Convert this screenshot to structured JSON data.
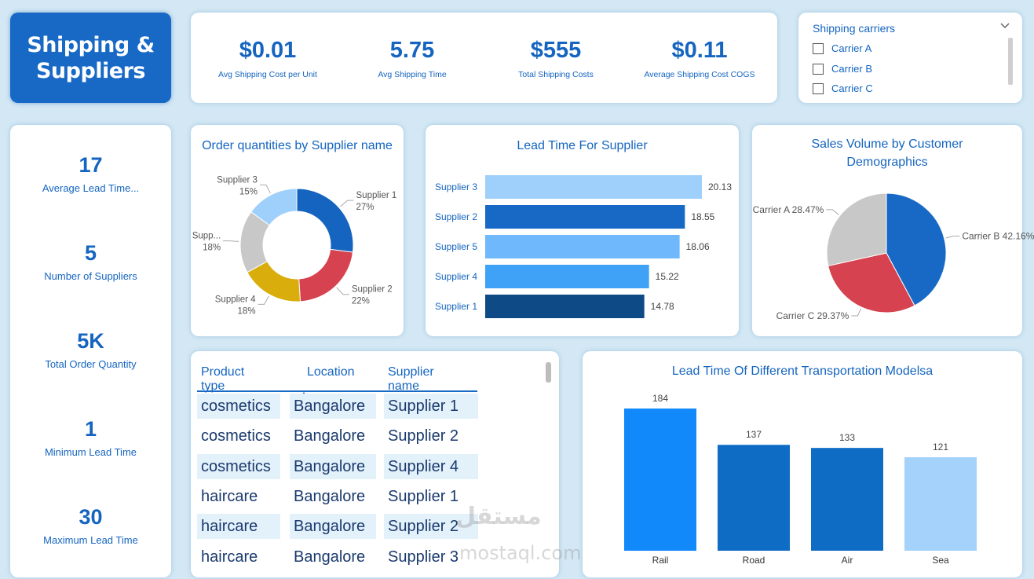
{
  "header": {
    "title": "Shipping &\nSuppliers"
  },
  "kpis_top": [
    {
      "value": "$0.01",
      "label": "Avg Shipping Cost per Unit"
    },
    {
      "value": "5.75",
      "label": "Avg Shipping Time"
    },
    {
      "value": "$555",
      "label": "Total Shipping Costs"
    },
    {
      "value": "$0.11",
      "label": "Average Shipping Cost COGS"
    }
  ],
  "slicer": {
    "title": "Shipping carriers",
    "chevron_icon": "chevron-down-icon",
    "options": [
      "Carrier A",
      "Carrier B",
      "Carrier C"
    ]
  },
  "kpis_left": [
    {
      "value": "17",
      "label": "Average Lead Time..."
    },
    {
      "value": "5",
      "label": "Number of Suppliers"
    },
    {
      "value": "5K",
      "label": "Total Order Quantity"
    },
    {
      "value": "1",
      "label": "Minimum Lead Time"
    },
    {
      "value": "30",
      "label": "Maximum Lead Time"
    }
  ],
  "colors": {
    "accent": "#1769c5",
    "supplier1": "#1565c0",
    "supplier2": "#d6424f",
    "supplier4": "#d9ad0c",
    "supplier5": "#c8c8c8",
    "supplier3": "#9fd0fb"
  },
  "chart_data": [
    {
      "type": "pie",
      "title": "Order quantities by Supplier name",
      "categories": [
        "Supplier 1",
        "Supplier 2",
        "Supplier 4",
        "Supp...",
        "Supplier 3"
      ],
      "values": [
        27,
        22,
        18,
        18,
        15
      ],
      "value_labels": [
        "27%",
        "22%",
        "18%",
        "18%",
        "15%"
      ],
      "colors": [
        "#1565c0",
        "#d6424f",
        "#d9ad0c",
        "#c8c8c8",
        "#9fd0fb"
      ]
    },
    {
      "type": "bar",
      "title": "Lead Time For Supplier",
      "categories": [
        "Supplier 3",
        "Supplier 2",
        "Supplier 5",
        "Supplier 4",
        "Supplier 1"
      ],
      "values": [
        20.13,
        18.55,
        18.06,
        15.22,
        14.78
      ],
      "value_labels": [
        "20.13",
        "18.55",
        "18.06",
        "15.22",
        "14.78"
      ],
      "colors": [
        "#9fd0fb",
        "#1769c5",
        "#6fb8fc",
        "#3fa2f7",
        "#0d4a86"
      ],
      "orientation": "horizontal"
    },
    {
      "type": "pie",
      "title": "Sales Volume by Customer Demographics",
      "categories": [
        "Carrier B",
        "Carrier C",
        "Carrier A"
      ],
      "values": [
        42.16,
        29.37,
        28.47
      ],
      "value_labels": [
        "Carrier B 42.16%",
        "Carrier C 29.37%",
        "Carrier A 28.47%"
      ],
      "colors": [
        "#1769c5",
        "#d6424f",
        "#c8c8c8"
      ]
    },
    {
      "type": "bar",
      "title": "Lead Time Of Different Transportation Modelsa",
      "categories": [
        "Rail",
        "Road",
        "Air",
        "Sea"
      ],
      "values": [
        184,
        137,
        133,
        121
      ],
      "value_labels": [
        "184",
        "137",
        "133",
        "121"
      ],
      "colors": [
        "#1189fa",
        "#0f6cc5",
        "#0f6cc5",
        "#a4d2fb"
      ],
      "orientation": "vertical"
    }
  ],
  "table": {
    "headers": [
      "Product type",
      "Location",
      "Supplier name"
    ],
    "rows": [
      [
        "cosmetics",
        "Bangalore",
        "Supplier 1"
      ],
      [
        "cosmetics",
        "Bangalore",
        "Supplier 2"
      ],
      [
        "cosmetics",
        "Bangalore",
        "Supplier 4"
      ],
      [
        "haircare",
        "Bangalore",
        "Supplier 1"
      ],
      [
        "haircare",
        "Bangalore",
        "Supplier 2"
      ],
      [
        "haircare",
        "Bangalore",
        "Supplier 3"
      ]
    ]
  },
  "watermark": {
    "line1": "مستقل",
    "line2": "mostaql.com"
  }
}
